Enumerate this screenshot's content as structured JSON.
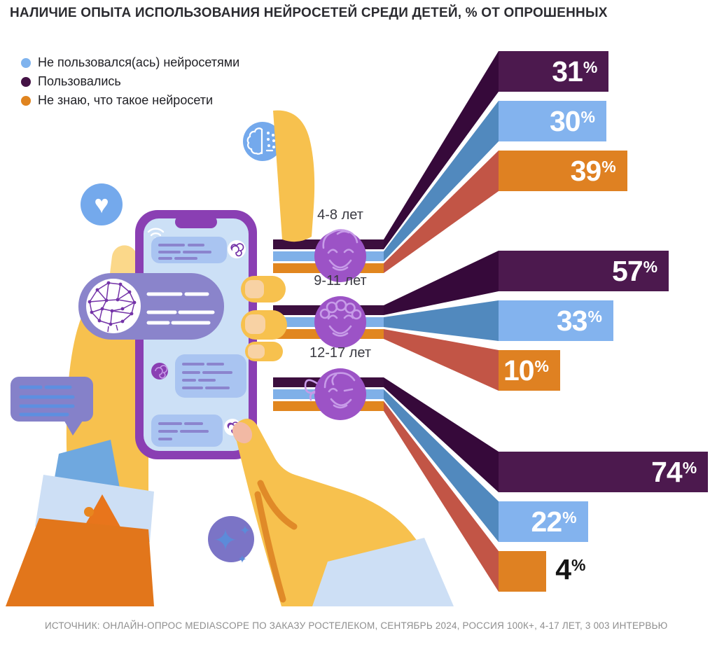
{
  "title": "НАЛИЧИЕ ОПЫТА ИСПОЛЬЗОВАНИЯ НЕЙРОСЕТЕЙ СРЕДИ ДЕТЕЙ, % ОТ ОПРОШЕННЫХ",
  "source": "ИСТОЧНИК: ОНЛАЙН-ОПРОС MEDIASCOPE ПО ЗАКАЗУ РОСТЕЛЕКОМ, СЕНТЯБРЬ 2024, РОССИЯ 100К+, 4-17 ЛЕТ, 3 003 ИНТЕРВЬЮ",
  "legend": {
    "items": [
      {
        "label": "Не пользовался(ась) нейросетями",
        "color": "#7FB3EE"
      },
      {
        "label": "Пользовались",
        "color": "#441245"
      },
      {
        "label": "Не знаю, что такое нейросети",
        "color": "#E0841F"
      }
    ]
  },
  "icons": {
    "heart": "♥",
    "sparkles": "✦"
  },
  "chart_data": {
    "type": "bar",
    "orientation": "horizontal",
    "title": "НАЛИЧИЕ ОПЫТА ИСПОЛЬЗОВАНИЯ НЕЙРОСЕТЕЙ СРЕДИ ДЕТЕЙ",
    "unit": "% от опрошенных",
    "value_suffix": "%",
    "categories": [
      "4-8 лет",
      "9-11 лет",
      "12-17 лет"
    ],
    "series": [
      {
        "name": "Пользовались",
        "color": "#4C194E",
        "ribbon_color": "#36093A",
        "stripe_color": "#3C0F3E",
        "values": [
          31,
          57,
          74
        ]
      },
      {
        "name": "Не пользовался(ась) нейросетями",
        "color": "#83B3EE",
        "ribbon_color": "#5189BE",
        "stripe_color": "#7FB0E8",
        "values": [
          30,
          33,
          22
        ]
      },
      {
        "name": "Не знаю, что такое нейросети",
        "color": "#DF8122",
        "ribbon_color": "#C25546",
        "stripe_color": "#E1861F",
        "values": [
          39,
          10,
          4
        ]
      }
    ],
    "category_icon_color": "#9C53C6",
    "legend_position": "top-left",
    "grid": false
  }
}
